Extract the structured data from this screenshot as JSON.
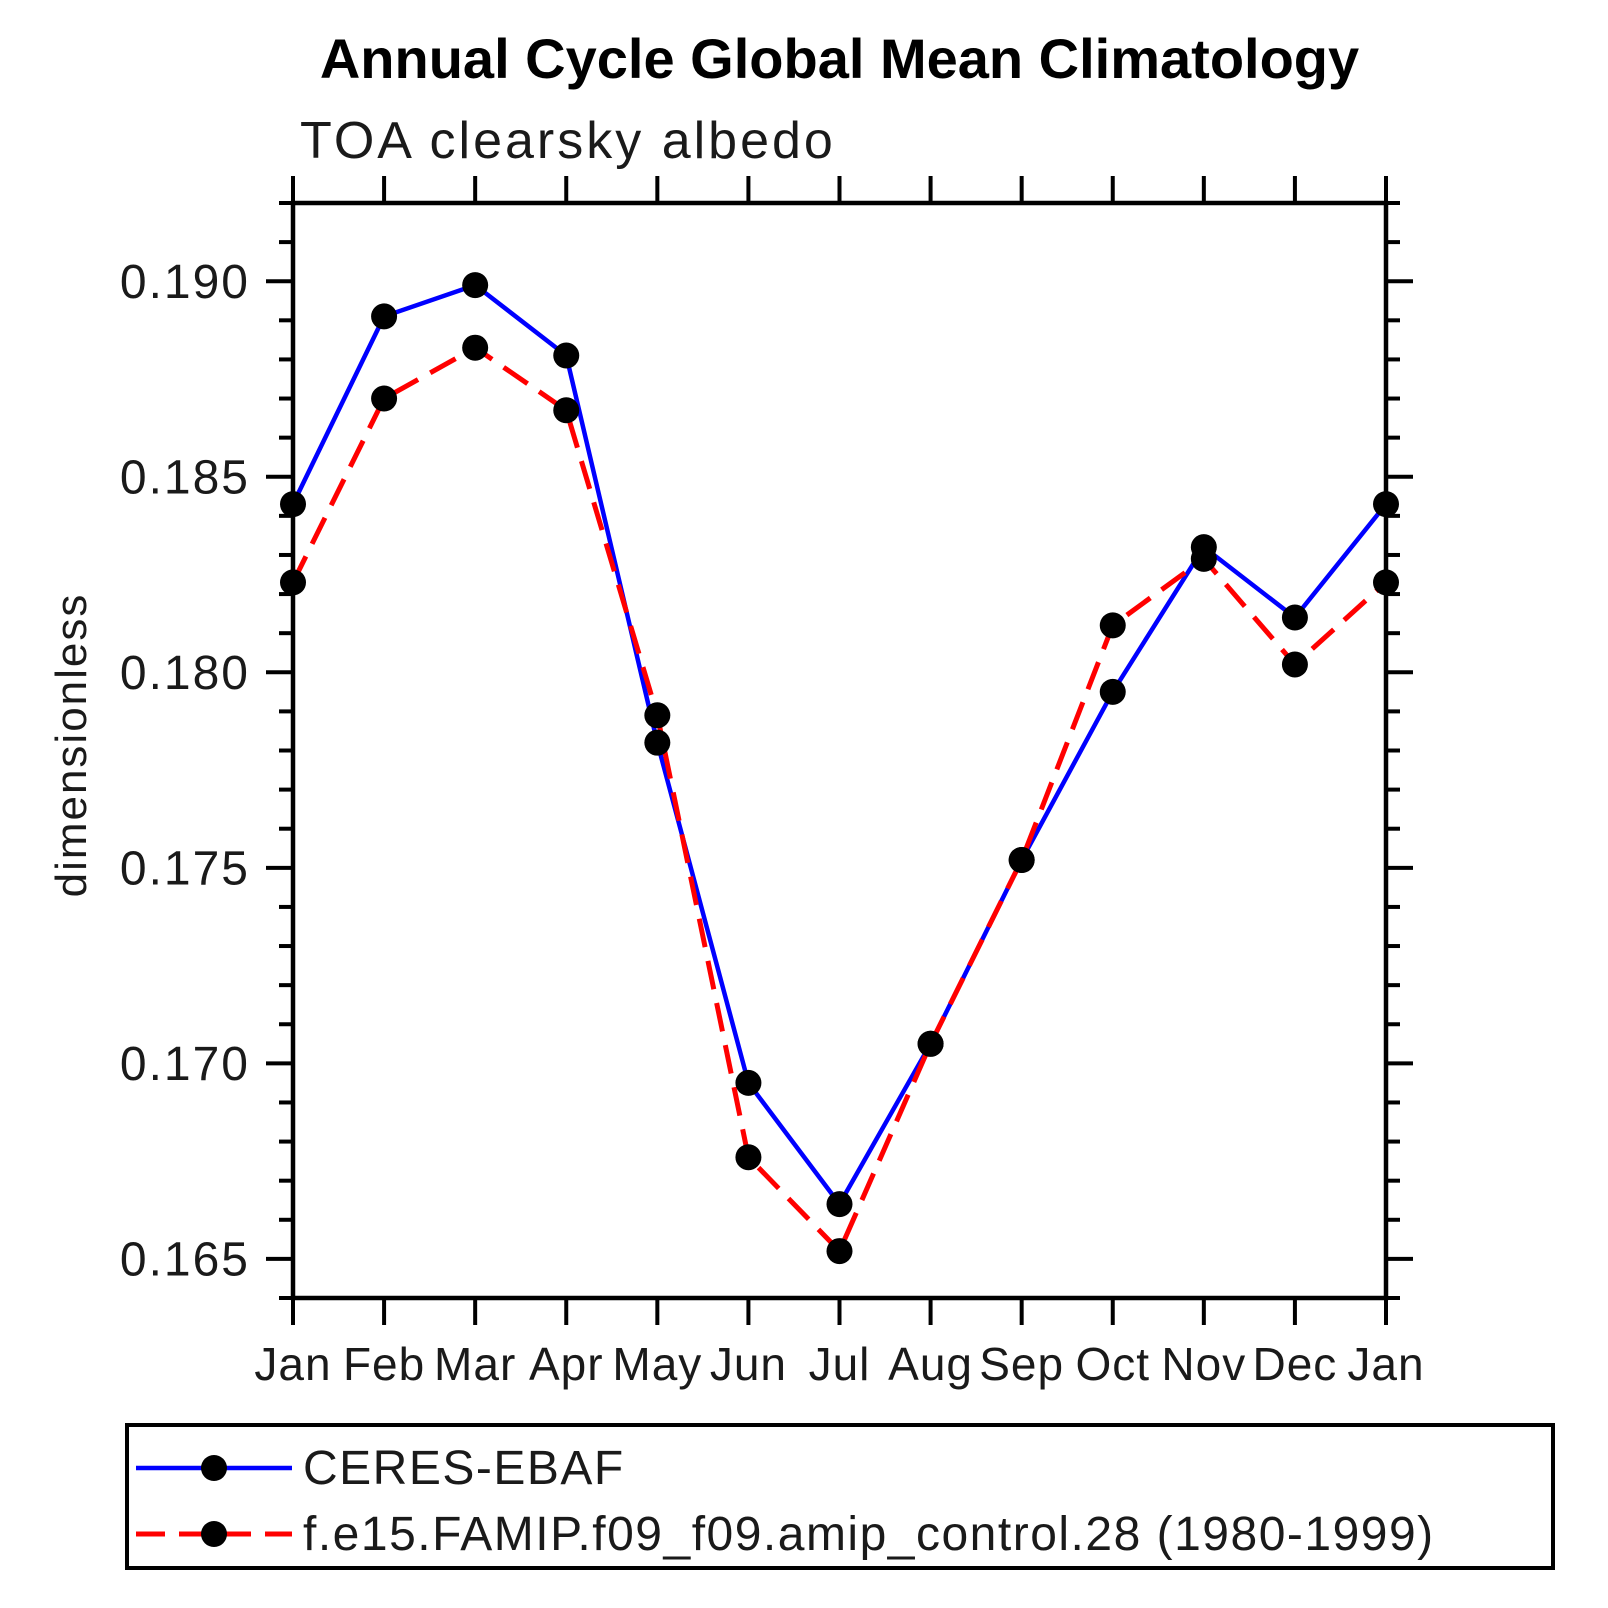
{
  "chart_data": {
    "type": "line",
    "title": "Annual Cycle Global Mean Climatology",
    "subtitle": "TOA clearsky albedo",
    "xlabel": "",
    "ylabel": "dimensionless",
    "categories": [
      "Jan",
      "Feb",
      "Mar",
      "Apr",
      "May",
      "Jun",
      "Jul",
      "Aug",
      "Sep",
      "Oct",
      "Nov",
      "Dec",
      "Jan"
    ],
    "ylim": [
      0.164,
      0.192
    ],
    "ytick_major": [
      0.165,
      0.17,
      0.175,
      0.18,
      0.185,
      0.19
    ],
    "ytick_labels": [
      "0.165",
      "0.170",
      "0.175",
      "0.180",
      "0.185",
      "0.190"
    ],
    "ytick_minor_step": 0.001,
    "grid": false,
    "legend_position": "bottom-left-box",
    "axis_color": "#000000",
    "series": [
      {
        "name": "CERES-EBAF",
        "color": "#0000ff",
        "line_style": "solid",
        "marker": "circle",
        "marker_color": "#000000",
        "values": [
          0.1843,
          0.1891,
          0.1899,
          0.1881,
          0.1782,
          0.1695,
          0.1664,
          0.1705,
          0.1752,
          0.1795,
          0.1832,
          0.1814,
          0.1843
        ]
      },
      {
        "name": "f.e15.FAMIP.f09_f09.amip_control.28 (1980-1999)",
        "color": "#ff0000",
        "line_style": "dashed",
        "marker": "circle",
        "marker_color": "#000000",
        "values": [
          0.1823,
          0.187,
          0.1883,
          0.1867,
          0.1789,
          0.1676,
          0.1652,
          0.1705,
          0.1752,
          0.1812,
          0.1829,
          0.1802,
          0.1823
        ]
      }
    ]
  }
}
